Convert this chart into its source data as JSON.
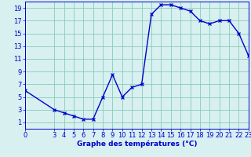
{
  "xlabel": "Graphe des températures (°C)",
  "hours": [
    0,
    3,
    4,
    5,
    6,
    7,
    8,
    9,
    10,
    11,
    12,
    13,
    14,
    15,
    16,
    17,
    18,
    19,
    20,
    21,
    22,
    23
  ],
  "temps": [
    6,
    3,
    2.5,
    2,
    1.5,
    1.5,
    5,
    8.5,
    5,
    6.5,
    7,
    18,
    19.5,
    19.5,
    19,
    18.5,
    17,
    16.5,
    17,
    17,
    15,
    11.5
  ],
  "line_color": "#0000cc",
  "marker": "x",
  "bg_color": "#d8f0f0",
  "grid_color": "#88ccbb",
  "xlim": [
    0,
    23
  ],
  "ylim": [
    0,
    20
  ],
  "xticks": [
    0,
    3,
    4,
    5,
    6,
    7,
    8,
    9,
    10,
    11,
    12,
    13,
    14,
    15,
    16,
    17,
    18,
    19,
    20,
    21,
    22,
    23
  ],
  "yticks": [
    1,
    3,
    5,
    7,
    9,
    11,
    13,
    15,
    17,
    19
  ],
  "xlabel_fontsize": 6.5,
  "tick_fontsize": 6,
  "line_width": 1.0,
  "marker_size": 3.5,
  "marker_edge_width": 0.9
}
